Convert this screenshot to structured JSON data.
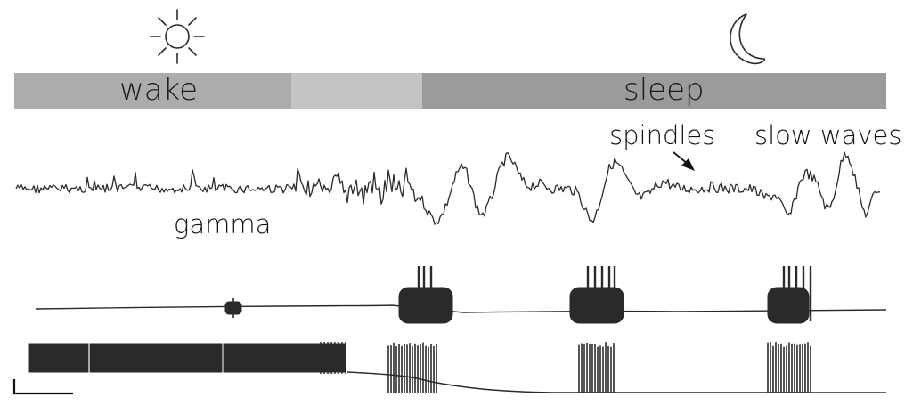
{
  "state_bar": {
    "wake_label": "wake",
    "sleep_label": "sleep",
    "colors": {
      "wake": "#acacac",
      "transition": "#c4c4c4",
      "sleep": "#9b9b9b"
    }
  },
  "icons": {
    "day": "sun-icon",
    "night": "moon-icon"
  },
  "annotations": {
    "gamma": "gamma",
    "spindles": "spindles",
    "slow_waves": "slow waves"
  },
  "trace_color": "#2a2a2a"
}
